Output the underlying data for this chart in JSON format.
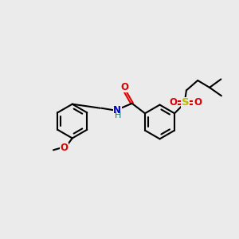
{
  "bg_color": "#ebebeb",
  "bond_color": "#000000",
  "O_color": "#dd0000",
  "N_color": "#0000cc",
  "S_color": "#bbbb00",
  "figsize": [
    3.0,
    3.0
  ],
  "dpi": 100,
  "lw": 1.5,
  "fs": 8.5,
  "ring_r": 0.72,
  "xlim": [
    0,
    10
  ],
  "ylim": [
    0,
    10
  ]
}
